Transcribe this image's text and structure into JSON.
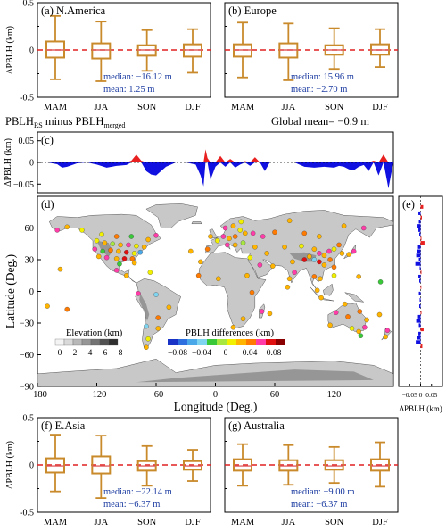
{
  "colors": {
    "box": "#c98a2b",
    "zero_line": "#e02020",
    "median": "#e06060",
    "stat_text": "#1a3aa0",
    "neg_fill": "#1010e0",
    "pos_fill": "#e82020",
    "land": "#c8c8c8",
    "ocean": "#ffffff",
    "coast": "#333333"
  },
  "header": {
    "diff_label_main": "PBLH",
    "diff_label_sub1": "RS",
    "diff_label_mid": " minus PBLH",
    "diff_label_sub2": "merged",
    "global_mean": "Global mean= −0.9 m"
  },
  "chart_data": [
    {
      "id": "a",
      "type": "box",
      "title": "(a) N.America",
      "ylabel": "ΔPBLH (km)",
      "ylim": [
        -0.5,
        0.5
      ],
      "yticks": [
        -0.5,
        0,
        0.5
      ],
      "categories": [
        "MAM",
        "JJA",
        "SON",
        "DJF"
      ],
      "boxes": [
        {
          "whislo": -0.31,
          "q1": -0.08,
          "med": 0.0,
          "q3": 0.09,
          "whishi": 0.36
        },
        {
          "whislo": -0.33,
          "q1": -0.09,
          "med": 0.0,
          "q3": 0.07,
          "whishi": 0.3
        },
        {
          "whislo": -0.22,
          "q1": -0.06,
          "med": 0.0,
          "q3": 0.05,
          "whishi": 0.21
        },
        {
          "whislo": -0.24,
          "q1": -0.07,
          "med": 0.0,
          "q3": 0.06,
          "whishi": 0.22
        }
      ],
      "median_text": "median:  −16.12 m",
      "mean_text": "mean:    1.25 m"
    },
    {
      "id": "b",
      "type": "box",
      "title": "(b) Europe",
      "ylim": [
        -0.5,
        0.5
      ],
      "yticks": [
        -0.5,
        0,
        0.5
      ],
      "categories": [
        "MAM",
        "JJA",
        "SON",
        "DJF"
      ],
      "boxes": [
        {
          "whislo": -0.29,
          "q1": -0.07,
          "med": 0.0,
          "q3": 0.06,
          "whishi": 0.29
        },
        {
          "whislo": -0.32,
          "q1": -0.08,
          "med": 0.0,
          "q3": 0.07,
          "whishi": 0.28
        },
        {
          "whislo": -0.2,
          "q1": -0.05,
          "med": 0.0,
          "q3": 0.05,
          "whishi": 0.23
        },
        {
          "whislo": -0.18,
          "q1": -0.05,
          "med": 0.0,
          "q3": 0.06,
          "whishi": 0.22
        }
      ],
      "median_text": "median:  15.96 m",
      "mean_text": "mean:   −2.70 m"
    },
    {
      "id": "c",
      "type": "area",
      "title": "(c)",
      "ylabel": "ΔPBLH (km)",
      "ylim": [
        -0.07,
        0.07
      ],
      "yticks": [
        -0.05,
        0,
        0.05
      ],
      "xlim": [
        -180,
        180
      ],
      "x": [
        -180,
        -170,
        -160,
        -155,
        -150,
        -140,
        -130,
        -120,
        -110,
        -100,
        -90,
        -85,
        -80,
        -75,
        -70,
        -65,
        -60,
        -50,
        -40,
        -30,
        -20,
        -15,
        -12,
        -10,
        -8,
        -5,
        0,
        5,
        10,
        15,
        20,
        25,
        30,
        35,
        40,
        45,
        50,
        55,
        60,
        70,
        80,
        90,
        100,
        110,
        120,
        125,
        130,
        135,
        140,
        145,
        150,
        155,
        160,
        165,
        170,
        175,
        180
      ],
      "values": [
        0,
        0,
        -0.004,
        -0.012,
        -0.01,
        -0.002,
        0,
        -0.005,
        -0.012,
        -0.008,
        -0.006,
        0.004,
        0.018,
        0.004,
        -0.02,
        -0.028,
        -0.03,
        -0.01,
        0,
        0,
        -0.005,
        -0.03,
        -0.055,
        0.03,
        0.01,
        -0.04,
        -0.01,
        0.015,
        -0.01,
        0.008,
        -0.012,
        -0.005,
        0.003,
        -0.008,
        0.012,
        0,
        -0.02,
        0,
        0,
        0,
        0,
        -0.01,
        -0.012,
        -0.01,
        -0.012,
        -0.008,
        -0.01,
        -0.016,
        -0.018,
        -0.01,
        -0.006,
        -0.02,
        0.004,
        -0.03,
        0.018,
        -0.06,
        0
      ]
    },
    {
      "id": "d",
      "type": "map",
      "title": "(d)",
      "xlabel": "Longitude (Deg.)",
      "ylabel": "Latitude (Deg.)",
      "xlim": [
        -180,
        180
      ],
      "ylim": [
        -90,
        90
      ],
      "xticks": [
        -180,
        -120,
        -60,
        0,
        60,
        120
      ],
      "yticks": [
        -90,
        -60,
        -30,
        0,
        30,
        60
      ],
      "elevation_legend": {
        "title": "Elevation (km)",
        "ticks": [
          "0",
          "2",
          "4",
          "6",
          "8"
        ],
        "colors": [
          "#f4f4f4",
          "#d9d9d9",
          "#b8b8b8",
          "#969696",
          "#737373",
          "#525252",
          "#2e2e2e"
        ]
      },
      "diff_legend": {
        "title": "PBLH differences (km)",
        "ticks": [
          "−0.08",
          "−0.04",
          "0",
          "0.04",
          "0.08"
        ],
        "colors": [
          "#1a33c7",
          "#2e6fe0",
          "#4aa8e8",
          "#7fd4f0",
          "#38c838",
          "#a8e640",
          "#f0f000",
          "#ffb400",
          "#ff7a00",
          "#ff3ca8",
          "#e01010",
          "#8a0000"
        ]
      },
      "stations": [
        {
          "lon": -120,
          "lat": 48,
          "v": 0.01
        },
        {
          "lon": -112,
          "lat": 46,
          "v": 0.03
        },
        {
          "lon": -104,
          "lat": 45,
          "v": -0.01
        },
        {
          "lon": -96,
          "lat": 44,
          "v": 0.02
        },
        {
          "lon": -88,
          "lat": 44,
          "v": 0.05
        },
        {
          "lon": -80,
          "lat": 43,
          "v": 0.0
        },
        {
          "lon": -72,
          "lat": 42,
          "v": 0.03
        },
        {
          "lon": -122,
          "lat": 40,
          "v": 0.06
        },
        {
          "lon": -114,
          "lat": 38,
          "v": -0.02
        },
        {
          "lon": -106,
          "lat": 39,
          "v": 0.04
        },
        {
          "lon": -98,
          "lat": 38,
          "v": 0.02
        },
        {
          "lon": -90,
          "lat": 37,
          "v": 0.07
        },
        {
          "lon": -82,
          "lat": 36,
          "v": 0.01
        },
        {
          "lon": -76,
          "lat": 37,
          "v": -0.06
        },
        {
          "lon": -118,
          "lat": 33,
          "v": 0.03
        },
        {
          "lon": -110,
          "lat": 32,
          "v": 0.05
        },
        {
          "lon": -100,
          "lat": 31,
          "v": 0.02
        },
        {
          "lon": -92,
          "lat": 31,
          "v": 0.08
        },
        {
          "lon": -84,
          "lat": 31,
          "v": 0.04
        },
        {
          "lon": -97,
          "lat": 26,
          "v": -0.03
        },
        {
          "lon": -82,
          "lat": 27,
          "v": 0.03
        },
        {
          "lon": -150,
          "lat": 61,
          "v": 0.02
        },
        {
          "lon": -160,
          "lat": 58,
          "v": 0.05
        },
        {
          "lon": -135,
          "lat": 58,
          "v": 0.01
        },
        {
          "lon": -115,
          "lat": 54,
          "v": 0.0
        },
        {
          "lon": -100,
          "lat": 52,
          "v": 0.04
        },
        {
          "lon": -85,
          "lat": 52,
          "v": -0.02
        },
        {
          "lon": -68,
          "lat": 49,
          "v": 0.02
        },
        {
          "lon": -60,
          "lat": 53,
          "v": 0.05
        },
        {
          "lon": -100,
          "lat": 20,
          "v": 0.06
        },
        {
          "lon": -90,
          "lat": 15,
          "v": 0.03
        },
        {
          "lon": -66,
          "lat": 18,
          "v": 0.0
        },
        {
          "lon": -78,
          "lat": -2,
          "v": 0.05
        },
        {
          "lon": -60,
          "lat": -3,
          "v": -0.05
        },
        {
          "lon": -47,
          "lat": -15,
          "v": 0.02
        },
        {
          "lon": -58,
          "lat": -25,
          "v": 0.04
        },
        {
          "lon": -70,
          "lat": -33,
          "v": -0.04
        },
        {
          "lon": -58,
          "lat": -35,
          "v": 0.03
        },
        {
          "lon": -68,
          "lat": -45,
          "v": 0.01
        },
        {
          "lon": -70,
          "lat": -53,
          "v": 0.02
        },
        {
          "lon": -5,
          "lat": 52,
          "v": 0.03
        },
        {
          "lon": 2,
          "lat": 48,
          "v": 0.0
        },
        {
          "lon": 8,
          "lat": 52,
          "v": 0.05
        },
        {
          "lon": 14,
          "lat": 50,
          "v": 0.02
        },
        {
          "lon": 20,
          "lat": 52,
          "v": 0.04
        },
        {
          "lon": 25,
          "lat": 58,
          "v": 0.01
        },
        {
          "lon": 30,
          "lat": 55,
          "v": 0.03
        },
        {
          "lon": 38,
          "lat": 55,
          "v": 0.05
        },
        {
          "lon": 12,
          "lat": 44,
          "v": 0.06
        },
        {
          "lon": 20,
          "lat": 44,
          "v": 0.03
        },
        {
          "lon": 28,
          "lat": 46,
          "v": -0.01
        },
        {
          "lon": -8,
          "lat": 40,
          "v": 0.04
        },
        {
          "lon": 18,
          "lat": 62,
          "v": 0.02
        },
        {
          "lon": 10,
          "lat": 60,
          "v": 0.05
        },
        {
          "lon": 26,
          "lat": 66,
          "v": 0.0
        },
        {
          "lon": 40,
          "lat": 42,
          "v": 0.02
        },
        {
          "lon": 48,
          "lat": 52,
          "v": 0.06
        },
        {
          "lon": 60,
          "lat": 56,
          "v": 0.04
        },
        {
          "lon": 52,
          "lat": 36,
          "v": 0.03
        },
        {
          "lon": 45,
          "lat": 25,
          "v": 0.05
        },
        {
          "lon": 58,
          "lat": 24,
          "v": 0.02
        },
        {
          "lon": 35,
          "lat": 32,
          "v": 0.01
        },
        {
          "lon": 70,
          "lat": 42,
          "v": 0.03
        },
        {
          "lon": 100,
          "lat": 40,
          "v": 0.02
        },
        {
          "lon": 105,
          "lat": 36,
          "v": 0.05
        },
        {
          "lon": 110,
          "lat": 34,
          "v": 0.03
        },
        {
          "lon": 115,
          "lat": 38,
          "v": 0.06
        },
        {
          "lon": 120,
          "lat": 40,
          "v": 0.0
        },
        {
          "lon": 116,
          "lat": 30,
          "v": 0.04
        },
        {
          "lon": 110,
          "lat": 25,
          "v": 0.02
        },
        {
          "lon": 105,
          "lat": 28,
          "v": 0.07
        },
        {
          "lon": 100,
          "lat": 30,
          "v": -0.05
        },
        {
          "lon": 95,
          "lat": 33,
          "v": 0.03
        },
        {
          "lon": 90,
          "lat": 30,
          "v": 0.08
        },
        {
          "lon": 87,
          "lat": 43,
          "v": 0.01
        },
        {
          "lon": 125,
          "lat": 44,
          "v": 0.04
        },
        {
          "lon": 128,
          "lat": 36,
          "v": 0.03
        },
        {
          "lon": 135,
          "lat": 35,
          "v": 0.02
        },
        {
          "lon": 140,
          "lat": 38,
          "v": 0.05
        },
        {
          "lon": 120,
          "lat": 23,
          "v": 0.04
        },
        {
          "lon": 78,
          "lat": 28,
          "v": 0.03
        },
        {
          "lon": 80,
          "lat": 18,
          "v": 0.05
        },
        {
          "lon": 75,
          "lat": 12,
          "v": 0.02
        },
        {
          "lon": 100,
          "lat": 14,
          "v": 0.04
        },
        {
          "lon": 106,
          "lat": 12,
          "v": 0.03
        },
        {
          "lon": 120,
          "lat": 15,
          "v": 0.01
        },
        {
          "lon": 103,
          "lat": 1,
          "v": 0.03
        },
        {
          "lon": 107,
          "lat": -6,
          "v": 0.02
        },
        {
          "lon": 90,
          "lat": 55,
          "v": 0.04
        },
        {
          "lon": 105,
          "lat": 52,
          "v": 0.03
        },
        {
          "lon": 130,
          "lat": 62,
          "v": 0.02
        },
        {
          "lon": 150,
          "lat": 60,
          "v": 0.05
        },
        {
          "lon": 75,
          "lat": 67,
          "v": 0.02
        },
        {
          "lon": -15,
          "lat": 28,
          "v": 0.02
        },
        {
          "lon": -17,
          "lat": 15,
          "v": 0.04
        },
        {
          "lon": 3,
          "lat": 12,
          "v": 0.03
        },
        {
          "lon": 32,
          "lat": 15,
          "v": 0.02
        },
        {
          "lon": 37,
          "lat": -1,
          "v": 0.04
        },
        {
          "lon": 28,
          "lat": -26,
          "v": 0.02
        },
        {
          "lon": 18,
          "lat": -34,
          "v": 0.03
        },
        {
          "lon": 47,
          "lat": -19,
          "v": 0.05
        },
        {
          "lon": 55,
          "lat": -21,
          "v": 0.02
        },
        {
          "lon": 116,
          "lat": -32,
          "v": 0.03
        },
        {
          "lon": 122,
          "lat": -20,
          "v": 0.05
        },
        {
          "lon": 131,
          "lat": -12,
          "v": 0.02
        },
        {
          "lon": 134,
          "lat": -24,
          "v": 0.04
        },
        {
          "lon": 138,
          "lat": -35,
          "v": 0.0
        },
        {
          "lon": 145,
          "lat": -38,
          "v": 0.03
        },
        {
          "lon": 151,
          "lat": -34,
          "v": 0.05
        },
        {
          "lon": 153,
          "lat": -27,
          "v": 0.02
        },
        {
          "lon": 146,
          "lat": -19,
          "v": 0.04
        },
        {
          "lon": 147,
          "lat": -42,
          "v": -0.03
        },
        {
          "lon": 174,
          "lat": -37,
          "v": 0.06
        },
        {
          "lon": 172,
          "lat": -43,
          "v": 0.03
        },
        {
          "lon": -157,
          "lat": 21,
          "v": 0.02
        },
        {
          "lon": -150,
          "lat": -17,
          "v": 0.04
        },
        {
          "lon": 166,
          "lat": -22,
          "v": 0.02
        },
        {
          "lon": -170,
          "lat": -14,
          "v": 0.03
        },
        {
          "lon": 145,
          "lat": 14,
          "v": 0.02
        },
        {
          "lon": 73,
          "lat": 4,
          "v": 0.03
        },
        {
          "lon": 167,
          "lat": 9,
          "v": -0.02
        },
        {
          "lon": -25,
          "lat": 38,
          "v": 0.02
        }
      ]
    },
    {
      "id": "e",
      "type": "bar",
      "orientation": "horizontal",
      "title": "(e)",
      "xlabel": "ΔPBLH (km)",
      "xlim": [
        -0.1,
        0.1
      ],
      "xticks": [
        -0.05,
        0,
        0.05
      ],
      "xtick_labels": [
        "−0.05",
        "0",
        "0.05"
      ],
      "ylim": [
        -90,
        90
      ],
      "lat": [
        80,
        74,
        70,
        66,
        62,
        58,
        54,
        50,
        46,
        42,
        38,
        34,
        30,
        26,
        22,
        18,
        14,
        10,
        4,
        -2,
        -8,
        -14,
        -20,
        -24,
        -28,
        -32,
        -36,
        -40,
        -44,
        -48,
        -52
      ],
      "values": [
        0.012,
        -0.01,
        0.006,
        -0.008,
        -0.014,
        -0.01,
        -0.006,
        0.004,
        0.018,
        -0.012,
        -0.016,
        -0.02,
        -0.008,
        -0.024,
        -0.004,
        0.004,
        -0.01,
        -0.006,
        0.002,
        -0.008,
        -0.004,
        -0.006,
        0.004,
        -0.012,
        -0.02,
        -0.008,
        0.014,
        -0.01,
        -0.016,
        -0.022,
        0.008
      ]
    },
    {
      "id": "f",
      "type": "box",
      "title": "(f) E.Asia",
      "ylabel": "ΔPBLH (km)",
      "ylim": [
        -0.5,
        0.5
      ],
      "yticks": [
        -0.5,
        0,
        0.5
      ],
      "categories": [
        "MAM",
        "JJA",
        "SON",
        "DJF"
      ],
      "boxes": [
        {
          "whislo": -0.28,
          "q1": -0.08,
          "med": -0.01,
          "q3": 0.07,
          "whishi": 0.32
        },
        {
          "whislo": -0.35,
          "q1": -0.09,
          "med": -0.01,
          "q3": 0.09,
          "whishi": 0.31
        },
        {
          "whislo": -0.22,
          "q1": -0.06,
          "med": -0.01,
          "q3": 0.04,
          "whishi": 0.2
        },
        {
          "whislo": -0.17,
          "q1": -0.05,
          "med": -0.01,
          "q3": 0.04,
          "whishi": 0.16
        }
      ],
      "median_text": "median:  −22.14 m",
      "mean_text": "mean:   −6.37 m"
    },
    {
      "id": "g",
      "type": "box",
      "title": "(g) Australia",
      "ylim": [
        -0.5,
        0.5
      ],
      "yticks": [
        -0.5,
        0,
        0.5
      ],
      "categories": [
        "MAM",
        "JJA",
        "SON",
        "DJF"
      ],
      "boxes": [
        {
          "whislo": -0.22,
          "q1": -0.06,
          "med": -0.01,
          "q3": 0.06,
          "whishi": 0.22
        },
        {
          "whislo": -0.21,
          "q1": -0.06,
          "med": -0.01,
          "q3": 0.05,
          "whishi": 0.21
        },
        {
          "whislo": -0.19,
          "q1": -0.05,
          "med": -0.01,
          "q3": 0.05,
          "whishi": 0.19
        },
        {
          "whislo": -0.23,
          "q1": -0.06,
          "med": -0.01,
          "q3": 0.06,
          "whishi": 0.24
        }
      ],
      "median_text": "median:  −9.00 m",
      "mean_text": "mean:   −6.37 m"
    }
  ]
}
